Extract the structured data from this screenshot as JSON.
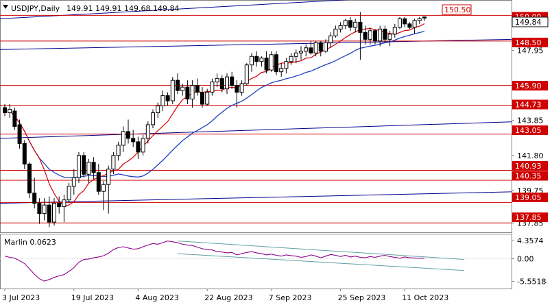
{
  "header": {
    "symbol_label": "USDJPY,Daily",
    "ohlc_label": "149.91 149.91 149.68 149.84"
  },
  "indicator": {
    "name_label": "Marlin 0.0623"
  },
  "chart_data": [
    {
      "type": "candlestick",
      "title": "USDJPY,Daily",
      "ohlc": {
        "open": 149.91,
        "high": 149.91,
        "low": 149.68,
        "close": 149.84
      },
      "ylim": [
        137.3,
        150.9
      ],
      "price_ticks": [
        "150.00",
        "147.95",
        "145.90",
        "143.85",
        "141.80",
        "139.75",
        "137.85"
      ],
      "date_ticks": [
        "3 Jul 2023",
        "19 Jul 2023",
        "4 Aug 2023",
        "22 Aug 2023",
        "7 Sep 2023",
        "25 Sep 2023",
        "11 Oct 2023"
      ],
      "current_price_label": "149.84",
      "horizontal_levels": [
        {
          "value": 150.0,
          "label": "150.00"
        },
        {
          "value": 148.5,
          "label": "148.50"
        },
        {
          "value": 145.9,
          "label": "145.90"
        },
        {
          "value": 144.73,
          "label": "144.73"
        },
        {
          "value": 143.05,
          "label": "143.05"
        },
        {
          "value": 140.93,
          "label": "140.93"
        },
        {
          "value": 140.35,
          "label": "140.35"
        },
        {
          "value": 139.05,
          "label": "139.05"
        },
        {
          "value": 137.85,
          "label": "137.85"
        }
      ],
      "target_label": {
        "value": 150.5,
        "label": "150.50"
      },
      "candles": [
        [
          144.6,
          144.8,
          144.1,
          144.3
        ],
        [
          144.3,
          144.8,
          144.0,
          144.5
        ],
        [
          144.4,
          144.6,
          143.3,
          143.5
        ],
        [
          143.6,
          143.9,
          142.2,
          142.5
        ],
        [
          142.5,
          142.7,
          141.0,
          141.3
        ],
        [
          141.3,
          141.4,
          139.3,
          139.6
        ],
        [
          139.6,
          140.5,
          138.7,
          139.0
        ],
        [
          139.0,
          139.3,
          137.8,
          138.4
        ],
        [
          138.4,
          139.3,
          138.0,
          138.9
        ],
        [
          138.9,
          139.4,
          137.6,
          137.9
        ],
        [
          137.9,
          139.3,
          137.7,
          139.0
        ],
        [
          139.0,
          139.4,
          138.4,
          138.8
        ],
        [
          138.8,
          139.5,
          137.9,
          139.2
        ],
        [
          139.2,
          140.2,
          139.0,
          140.0
        ],
        [
          140.0,
          141.0,
          139.5,
          140.5
        ],
        [
          140.5,
          142.0,
          140.2,
          141.8
        ],
        [
          141.8,
          142.0,
          140.5,
          140.7
        ],
        [
          140.7,
          141.6,
          140.2,
          141.4
        ],
        [
          141.4,
          141.7,
          140.4,
          140.8
        ],
        [
          140.8,
          141.3,
          139.5,
          139.7
        ],
        [
          139.7,
          140.3,
          138.6,
          140.1
        ],
        [
          140.1,
          141.2,
          138.4,
          141.0
        ],
        [
          141.0,
          142.0,
          140.7,
          141.8
        ],
        [
          141.8,
          142.6,
          141.5,
          142.4
        ],
        [
          142.4,
          143.5,
          142.0,
          143.2
        ],
        [
          143.2,
          143.9,
          142.5,
          142.8
        ],
        [
          142.8,
          143.3,
          142.3,
          142.6
        ],
        [
          142.6,
          142.9,
          141.6,
          142.0
        ],
        [
          142.0,
          143.0,
          141.8,
          142.8
        ],
        [
          142.8,
          143.8,
          142.5,
          143.6
        ],
        [
          143.6,
          144.5,
          143.4,
          144.3
        ],
        [
          144.3,
          144.9,
          144.0,
          144.7
        ],
        [
          144.7,
          145.6,
          144.4,
          145.3
        ],
        [
          145.3,
          145.5,
          144.7,
          145.0
        ],
        [
          145.0,
          146.4,
          144.8,
          146.2
        ],
        [
          146.2,
          146.6,
          145.4,
          145.6
        ],
        [
          145.6,
          146.0,
          145.3,
          145.8
        ],
        [
          145.8,
          146.2,
          144.8,
          145.1
        ],
        [
          145.1,
          146.2,
          144.6,
          145.9
        ],
        [
          145.9,
          146.3,
          145.3,
          145.5
        ],
        [
          145.5,
          145.8,
          144.6,
          144.8
        ],
        [
          144.8,
          145.7,
          144.7,
          145.5
        ],
        [
          145.5,
          146.3,
          145.3,
          146.1
        ],
        [
          146.1,
          146.6,
          145.8,
          146.3
        ],
        [
          146.3,
          146.5,
          145.5,
          145.7
        ],
        [
          145.7,
          146.6,
          145.4,
          146.4
        ],
        [
          146.4,
          146.7,
          145.7,
          145.9
        ],
        [
          145.9,
          146.2,
          144.6,
          145.5
        ],
        [
          145.5,
          146.2,
          145.3,
          146.0
        ],
        [
          146.0,
          147.2,
          145.9,
          147.1
        ],
        [
          147.1,
          147.8,
          146.7,
          147.6
        ],
        [
          147.6,
          147.9,
          147.0,
          147.3
        ],
        [
          147.3,
          147.6,
          147.0,
          147.5
        ],
        [
          147.5,
          147.9,
          146.6,
          146.8
        ],
        [
          146.8,
          147.9,
          146.7,
          147.7
        ],
        [
          147.7,
          147.9,
          146.5,
          146.7
        ],
        [
          146.7,
          147.2,
          146.4,
          146.9
        ],
        [
          146.9,
          147.5,
          146.6,
          147.3
        ],
        [
          147.3,
          147.8,
          147.1,
          147.6
        ],
        [
          147.6,
          148.0,
          147.2,
          147.8
        ],
        [
          147.8,
          148.2,
          147.4,
          147.9
        ],
        [
          147.9,
          148.3,
          147.6,
          148.1
        ],
        [
          148.1,
          148.5,
          147.7,
          147.8
        ],
        [
          147.8,
          148.5,
          147.6,
          148.4
        ],
        [
          148.4,
          148.5,
          147.6,
          147.9
        ],
        [
          147.9,
          148.6,
          147.8,
          148.4
        ],
        [
          148.4,
          149.0,
          148.1,
          148.8
        ],
        [
          148.8,
          149.4,
          148.7,
          149.2
        ],
        [
          149.2,
          149.6,
          149.0,
          149.4
        ],
        [
          149.4,
          149.8,
          149.2,
          149.7
        ],
        [
          149.7,
          149.9,
          149.1,
          149.3
        ],
        [
          149.3,
          149.8,
          149.0,
          149.6
        ],
        [
          149.6,
          150.2,
          147.4,
          149.0
        ],
        [
          149.0,
          149.4,
          148.3,
          148.6
        ],
        [
          148.6,
          149.3,
          148.3,
          149.1
        ],
        [
          149.1,
          149.2,
          148.3,
          148.5
        ],
        [
          148.5,
          149.4,
          148.2,
          149.2
        ],
        [
          149.2,
          149.4,
          148.4,
          148.6
        ],
        [
          148.6,
          149.1,
          148.2,
          148.9
        ],
        [
          148.9,
          149.5,
          148.7,
          149.3
        ],
        [
          149.3,
          149.9,
          149.2,
          149.8
        ],
        [
          149.8,
          149.9,
          149.3,
          149.5
        ],
        [
          149.5,
          149.6,
          149.2,
          149.3
        ],
        [
          149.3,
          149.8,
          148.9,
          149.7
        ],
        [
          149.7,
          149.9,
          149.5,
          149.8
        ],
        [
          149.91,
          149.91,
          149.68,
          149.84
        ]
      ],
      "marlin_ticks": [
        "4.3574",
        "0.00",
        "-5.5518"
      ],
      "marlin_values": [
        0.6,
        0.3,
        0.1,
        -0.5,
        -1.2,
        -2.5,
        -3.8,
        -4.9,
        -5.5,
        -5.1,
        -4.6,
        -4.2,
        -3.9,
        -3.1,
        -2.2,
        -0.9,
        -0.2,
        -0.1,
        0.2,
        0.4,
        0.7,
        1.3,
        2.2,
        2.7,
        2.9,
        2.6,
        2.3,
        2.4,
        2.9,
        3.3,
        3.7,
        3.5,
        3.9,
        4.3,
        4.1,
        3.9,
        3.5,
        3.3,
        3.2,
        2.8,
        2.4,
        2.2,
        2.1,
        1.7,
        1.6,
        1.4,
        1.5,
        0.9,
        1.2,
        1.5,
        1.7,
        1.4,
        1.2,
        0.9,
        1.1,
        0.8,
        0.6,
        0.9,
        0.7,
        0.6,
        0.3,
        0.5,
        0.9,
        0.6,
        0.2,
        0.6,
        1.0,
        0.8,
        0.5,
        0.8,
        0.4,
        0.6,
        0.3,
        0.2,
        0.5,
        0.3,
        0.6,
        0.8,
        0.5,
        0.3,
        0.1,
        0.4,
        0.2,
        0.15,
        0.1,
        0.0623
      ],
      "colors": {
        "level_line": "#d00000",
        "level_label_bg": "#d00000",
        "trend_line": "#00008b",
        "ma_fast": "#d00000",
        "ma_slow": "#1f3fbf",
        "indicator_line": "#8b008b",
        "channel_line": "#5fa0a0",
        "grid": "#d7d7d7"
      }
    }
  ]
}
